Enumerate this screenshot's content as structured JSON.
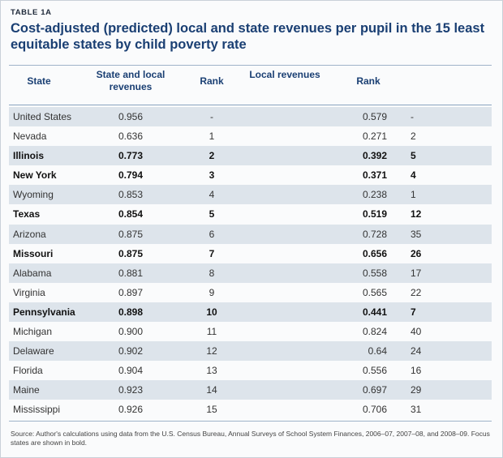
{
  "eyebrow": "TABLE 1A",
  "title": "Cost-adjusted (predicted)  local and state revenues per pupil in the 15 least equitable states by child poverty rate",
  "headers": {
    "state": "State",
    "state_local": "State and local revenues",
    "rank1": "Rank",
    "local": "Local revenues",
    "rank2": "Rank"
  },
  "rows": [
    {
      "state": "United States",
      "state_local": "0.956",
      "rank1": "-",
      "local": "0.579",
      "rank2": "-",
      "bold": false
    },
    {
      "state": "Nevada",
      "state_local": "0.636",
      "rank1": "1",
      "local": "0.271",
      "rank2": "2",
      "bold": false
    },
    {
      "state": "Illinois",
      "state_local": "0.773",
      "rank1": "2",
      "local": "0.392",
      "rank2": "5",
      "bold": true
    },
    {
      "state": "New York",
      "state_local": "0.794",
      "rank1": "3",
      "local": "0.371",
      "rank2": "4",
      "bold": true
    },
    {
      "state": "Wyoming",
      "state_local": "0.853",
      "rank1": "4",
      "local": "0.238",
      "rank2": "1",
      "bold": false
    },
    {
      "state": "Texas",
      "state_local": "0.854",
      "rank1": "5",
      "local": "0.519",
      "rank2": "12",
      "bold": true
    },
    {
      "state": "Arizona",
      "state_local": "0.875",
      "rank1": "6",
      "local": "0.728",
      "rank2": "35",
      "bold": false
    },
    {
      "state": "Missouri",
      "state_local": "0.875",
      "rank1": "7",
      "local": "0.656",
      "rank2": "26",
      "bold": true
    },
    {
      "state": "Alabama",
      "state_local": "0.881",
      "rank1": "8",
      "local": "0.558",
      "rank2": "17",
      "bold": false
    },
    {
      "state": "Virginia",
      "state_local": "0.897",
      "rank1": "9",
      "local": "0.565",
      "rank2": "22",
      "bold": false
    },
    {
      "state": "Pennsylvania",
      "state_local": "0.898",
      "rank1": "10",
      "local": "0.441",
      "rank2": "7",
      "bold": true
    },
    {
      "state": "Michigan",
      "state_local": "0.900",
      "rank1": "11",
      "local": "0.824",
      "rank2": "40",
      "bold": false
    },
    {
      "state": "Delaware",
      "state_local": "0.902",
      "rank1": "12",
      "local": "0.64",
      "rank2": "24",
      "bold": false
    },
    {
      "state": "Florida",
      "state_local": "0.904",
      "rank1": "13",
      "local": "0.556",
      "rank2": "16",
      "bold": false
    },
    {
      "state": "Maine",
      "state_local": "0.923",
      "rank1": "14",
      "local": "0.697",
      "rank2": "29",
      "bold": false
    },
    {
      "state": "Mississippi",
      "state_local": "0.926",
      "rank1": "15",
      "local": "0.706",
      "rank2": "31",
      "bold": false
    }
  ],
  "footnote": "Source: Author's calculations using data from the U.S. Census Bureau, Annual Surveys of School System Finances, 2006–07, 2007–08, and 2008–09. Focus states are shown in bold.",
  "colors": {
    "title": "#1a3f73",
    "shaded_row": "#dde4eb",
    "rule": "#9fb3c9"
  }
}
